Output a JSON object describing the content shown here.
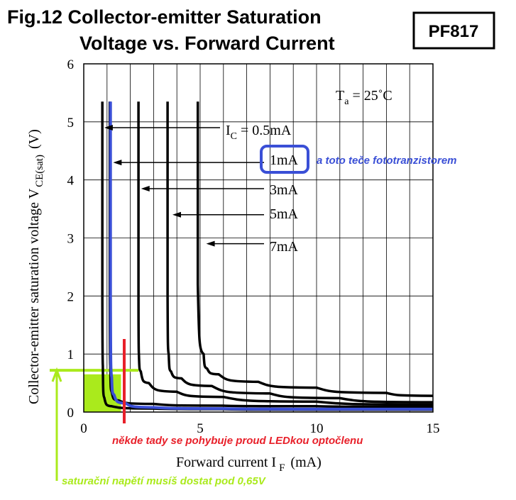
{
  "header": {
    "title_line1": "Fig.12 Collector-emitter Saturation",
    "title_line2": "Voltage vs. Forward Current",
    "badge": "PF817"
  },
  "colors": {
    "blue": "#3a4fd6",
    "green": "#aaea1c",
    "red": "#e8202a",
    "black": "#000000"
  },
  "chart_data": {
    "type": "line",
    "xlabel": "Forward current I",
    "xlabel_sub": "F",
    "xlabel_unit": "(mA)",
    "ylabel": "Collector-emitter saturation voltage V",
    "ylabel_sub": "CE(sat)",
    "ylabel_unit": "(V)",
    "xlim": [
      0,
      15
    ],
    "ylim": [
      0,
      6
    ],
    "xticks": [
      0,
      5,
      10,
      15
    ],
    "yticks": [
      0,
      1,
      2,
      3,
      4,
      5,
      6
    ],
    "grid": true,
    "condition": {
      "main": "T",
      "sub": "a",
      "rest": " = 25˚C"
    },
    "series": [
      {
        "name": "IC = 0.5mA",
        "label_main": "I",
        "label_sub": "C",
        "label_rest": " = 0.5mA",
        "color": "#000000",
        "x": [
          0.8,
          0.8,
          0.82,
          0.88,
          1.2,
          3,
          6,
          10,
          15
        ],
        "y": [
          5.35,
          2.0,
          0.8,
          0.25,
          0.1,
          0.06,
          0.05,
          0.04,
          0.04
        ]
      },
      {
        "name": "1mA",
        "label_main": "1mA",
        "color": "#000000",
        "x": [
          1.12,
          1.12,
          1.14,
          1.2,
          1.5,
          3,
          6,
          10,
          15
        ],
        "y": [
          5.35,
          2.0,
          0.8,
          0.35,
          0.2,
          0.14,
          0.11,
          0.1,
          0.09
        ]
      },
      {
        "name": "3mA",
        "label_main": "3mA",
        "color": "#000000",
        "x": [
          2.35,
          2.35,
          2.37,
          2.45,
          2.8,
          4,
          6,
          10,
          15
        ],
        "y": [
          5.35,
          2.0,
          1.0,
          0.7,
          0.5,
          0.35,
          0.26,
          0.18,
          0.13
        ]
      },
      {
        "name": "5mA",
        "label_main": "5mA",
        "color": "#000000",
        "x": [
          3.6,
          3.6,
          3.65,
          3.75,
          4.2,
          5.5,
          8,
          11,
          15
        ],
        "y": [
          5.35,
          2.0,
          1.0,
          0.7,
          0.58,
          0.45,
          0.32,
          0.24,
          0.17
        ]
      },
      {
        "name": "7mA",
        "label_main": "7mA",
        "color": "#000000",
        "x": [
          4.9,
          4.9,
          5.15,
          5.3,
          5.8,
          7.5,
          10,
          13,
          15
        ],
        "y": [
          5.35,
          2.2,
          1.0,
          0.75,
          0.65,
          0.52,
          0.42,
          0.33,
          0.28
        ]
      },
      {
        "name": "highlight",
        "color": "#3a4fd6",
        "x": [
          1.15,
          1.15,
          1.2,
          1.3,
          1.8,
          3,
          6,
          10,
          15
        ],
        "y": [
          5.35,
          2.0,
          0.6,
          0.3,
          0.15,
          0.08,
          0.06,
          0.05,
          0.05
        ]
      }
    ]
  },
  "annotations": {
    "blue_note": "a toto teče fototranzistorem",
    "red_note": "někde tady se pohybuje proud LEDkou optočlenu",
    "green_note": "saturační napětí musíš dostat pod 0,65V"
  }
}
